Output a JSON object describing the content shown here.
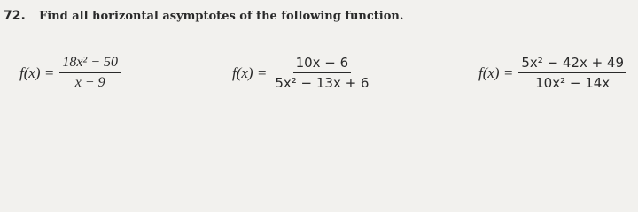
{
  "problem": {
    "number": "72.",
    "instruction": "Find all horizontal asymptotes of the following function."
  },
  "functions": [
    {
      "lhs": "f(x) =",
      "numerator": "18x² − 50",
      "denominator": "x − 9"
    },
    {
      "lhs": "f(x) =",
      "numerator": "10x − 6",
      "denominator": "5x² − 13x + 6"
    },
    {
      "lhs": "f(x) =",
      "numerator": "5x² − 42x + 49",
      "denominator": "10x² − 14x"
    }
  ]
}
